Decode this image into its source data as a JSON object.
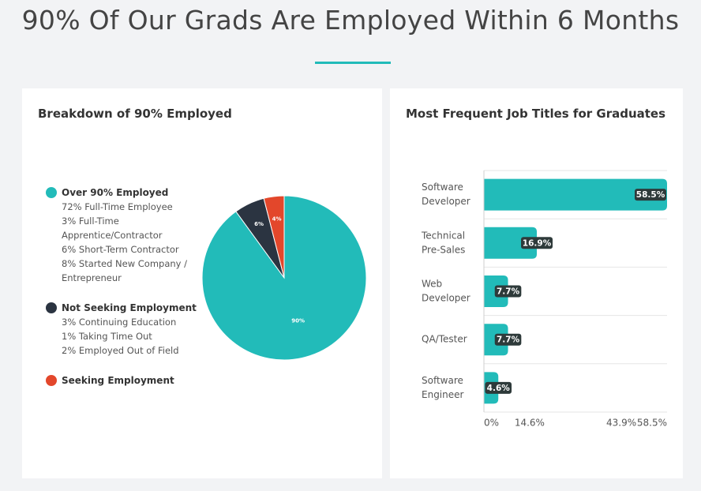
{
  "page": {
    "title": "90% Of Our Grads Are Employed Within 6 Months"
  },
  "left_card": {
    "title": "Breakdown of 90% Employed",
    "legend": [
      {
        "label": "Over 90% Employed",
        "color": "#22bbb9",
        "items": [
          "72% Full-Time Employee",
          "3% Full-Time",
          "Apprentice/Contractor",
          "6% Short-Term Contractor",
          "8% Started New Company /",
          "Entrepreneur"
        ]
      },
      {
        "label": "Not Seeking Employment",
        "color": "#2b3441",
        "items": [
          "3% Continuing Education",
          "1% Taking Time Out",
          "2% Employed Out of Field"
        ]
      },
      {
        "label": "Seeking Employment",
        "color": "#e3472b",
        "items": []
      }
    ]
  },
  "right_card": {
    "title": "Most Frequent Job Titles for Graduates"
  },
  "chart_data": [
    {
      "type": "pie",
      "labels": [
        "Over 90% Employed",
        "Not Seeking Employment",
        "Seeking Employment"
      ],
      "values": [
        90,
        6,
        4
      ],
      "data_labels": [
        "90%",
        "6%",
        "4%"
      ],
      "colors": [
        "#22bbb9",
        "#2b3441",
        "#e3472b"
      ]
    },
    {
      "type": "bar",
      "orientation": "horizontal",
      "categories": [
        [
          "Software",
          "Developer"
        ],
        [
          "Technical",
          "Pre-Sales"
        ],
        [
          "Web",
          "Developer"
        ],
        [
          "QA/Tester"
        ],
        [
          "Software",
          "Engineer"
        ]
      ],
      "values": [
        58.5,
        16.9,
        7.7,
        7.7,
        4.6
      ],
      "data_labels": [
        "58.5%",
        "16.9%",
        "7.7%",
        "7.7%",
        "4.6%"
      ],
      "xlim": [
        0,
        58.5
      ],
      "x_ticks": [
        0,
        14.6,
        43.9,
        58.5
      ],
      "x_tick_labels": [
        "0%",
        "14.6%",
        "43.9%",
        "58.5%"
      ],
      "bar_color": "#22bbb9",
      "label_color": "#2e3a3a"
    }
  ]
}
